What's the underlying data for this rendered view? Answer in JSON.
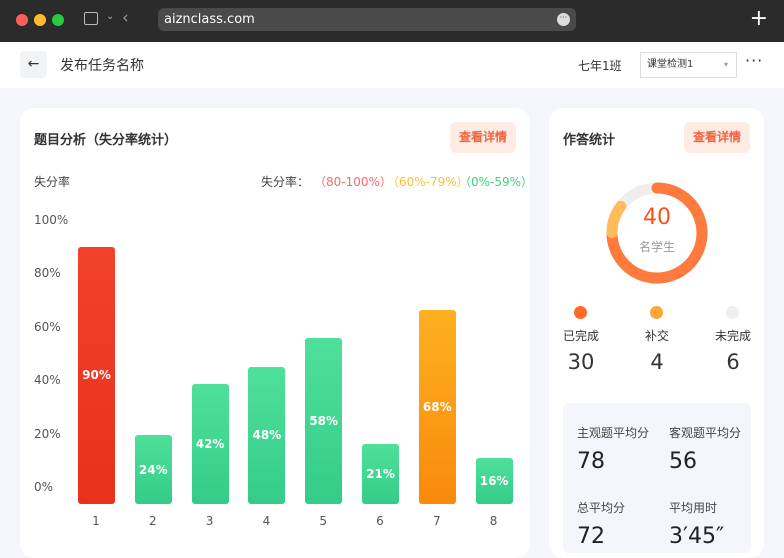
{
  "browser": {
    "url": "aiznclass.com"
  },
  "header": {
    "title": "发布任务名称",
    "class_name": "七年1班",
    "select_value": "课堂检测1"
  },
  "analysis": {
    "title": "题目分析（失分率统计）",
    "detail_label": "查看详情",
    "axis_label": "失分率",
    "legend_label": "失分率：",
    "legend": [
      {
        "label": "（80-100%）",
        "color": "#f56c6c"
      },
      {
        "label": "（60%-79%）",
        "color": "#fbc13a"
      },
      {
        "label": "（0%-59%）",
        "color": "#3fd283"
      }
    ]
  },
  "chart_data": {
    "type": "bar",
    "ylabel": "失分率",
    "ylim": [
      0,
      100
    ],
    "yticks": [
      "100%",
      "80%",
      "60%",
      "40%",
      "20%",
      "0%"
    ],
    "categories": [
      "1",
      "2",
      "3",
      "4",
      "5",
      "6",
      "7",
      "8"
    ],
    "values": [
      90,
      24,
      42,
      48,
      58,
      21,
      68,
      16
    ],
    "labels": [
      "90%",
      "24%",
      "42%",
      "48%",
      "58%",
      "21%",
      "68%",
      "16%"
    ]
  },
  "stats": {
    "title": "作答统计",
    "detail_label": "查看详情",
    "total": "40",
    "total_label": "名学生",
    "items": [
      {
        "label": "已完成",
        "value": "30",
        "color": "#ff6a2b"
      },
      {
        "label": "补交",
        "value": "4",
        "color": "#ffa53a"
      },
      {
        "label": "未完成",
        "value": "6",
        "color": "#eeeeee"
      }
    ],
    "metrics": [
      {
        "label": "主观题平均分",
        "value": "78"
      },
      {
        "label": "客观题平均分",
        "value": "56"
      },
      {
        "label": "总平均分",
        "value": "72"
      },
      {
        "label": "平均用时",
        "value": "3′45″"
      }
    ]
  }
}
